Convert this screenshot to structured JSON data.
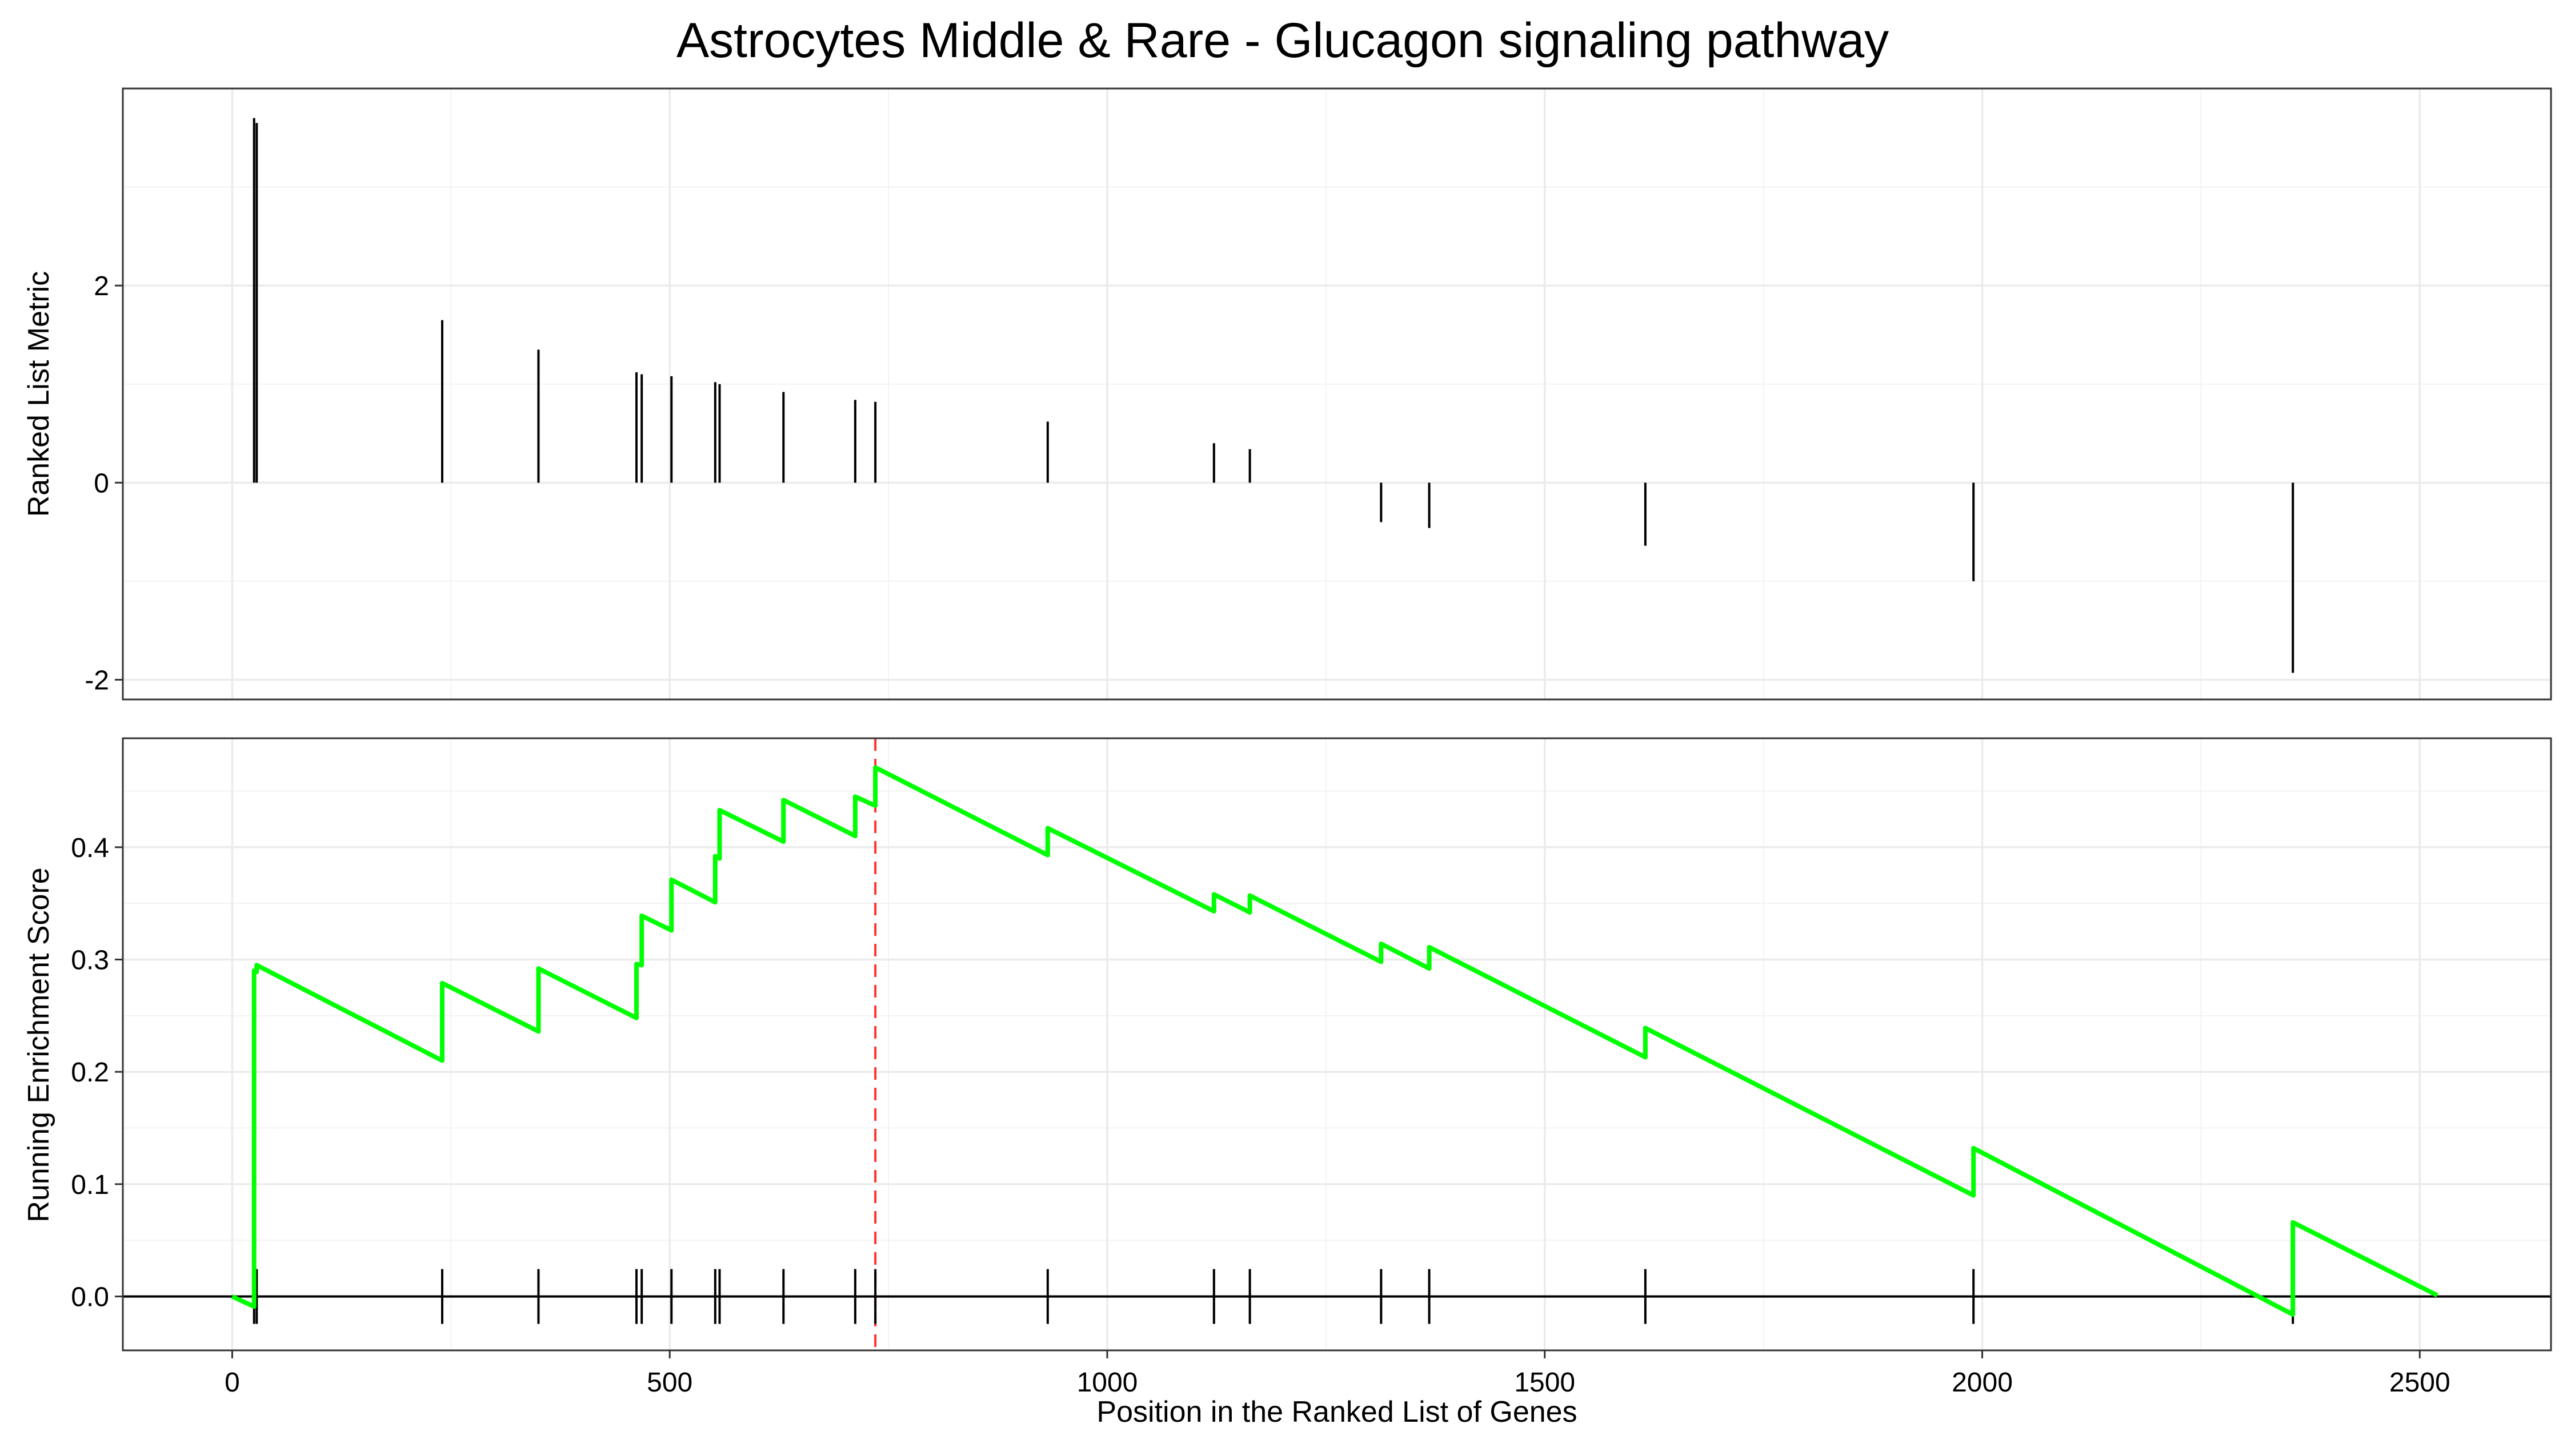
{
  "chart_data": {
    "type": "line",
    "title": "Astrocytes Middle & Rare - Glucagon signaling pathway",
    "xlabel": "Position in the Ranked List of Genes",
    "xlim": [
      -125,
      2650
    ],
    "x_ticks": [
      0,
      500,
      1000,
      1500,
      2000,
      2500
    ],
    "x_tick_labels": [
      "0",
      "500",
      "1000",
      "1500",
      "2000",
      "2500"
    ],
    "grid": true,
    "peak_position": 735,
    "colors": {
      "running_es": "#00ff00",
      "peak_line": "#ff3333",
      "bars": "#000000",
      "hits": "#000000",
      "zero_line": "#000000"
    },
    "top_panel": {
      "ylabel": "Ranked List Metric",
      "ylim": [
        -2.2,
        4.0
      ],
      "y_ticks": [
        -2,
        0,
        2
      ],
      "y_tick_labels": [
        "-2",
        "0",
        "2"
      ],
      "bars": [
        {
          "x": 25,
          "y": 3.7
        },
        {
          "x": 28,
          "y": 3.65
        },
        {
          "x": 240,
          "y": 1.65
        },
        {
          "x": 350,
          "y": 1.35
        },
        {
          "x": 462,
          "y": 1.12
        },
        {
          "x": 468,
          "y": 1.1
        },
        {
          "x": 502,
          "y": 1.08
        },
        {
          "x": 552,
          "y": 1.02
        },
        {
          "x": 557,
          "y": 1.0
        },
        {
          "x": 630,
          "y": 0.92
        },
        {
          "x": 712,
          "y": 0.84
        },
        {
          "x": 735,
          "y": 0.82
        },
        {
          "x": 932,
          "y": 0.62
        },
        {
          "x": 1122,
          "y": 0.4
        },
        {
          "x": 1163,
          "y": 0.34
        },
        {
          "x": 1313,
          "y": -0.4
        },
        {
          "x": 1368,
          "y": -0.46
        },
        {
          "x": 1615,
          "y": -0.64
        },
        {
          "x": 1990,
          "y": -1.0
        },
        {
          "x": 2355,
          "y": -1.93
        }
      ]
    },
    "bottom_panel": {
      "ylabel": "Running Enrichment Score",
      "ylim": [
        -0.048,
        0.497
      ],
      "y_ticks": [
        0.0,
        0.1,
        0.2,
        0.3,
        0.4
      ],
      "y_tick_labels": [
        "0.0",
        "0.1",
        "0.2",
        "0.3",
        "0.4"
      ],
      "series": [
        {
          "x": [
            0,
            25,
            25,
            28,
            28,
            240,
            240,
            350,
            350,
            462,
            462,
            468,
            468,
            502,
            502,
            552,
            552,
            557,
            557,
            630,
            630,
            712,
            712,
            735,
            735,
            932,
            932,
            1122,
            1122,
            1163,
            1163,
            1313,
            1313,
            1368,
            1368,
            1615,
            1615,
            1990,
            1990,
            2355,
            2355,
            2520
          ],
          "y": [
            0.0,
            -0.009,
            0.29,
            0.289,
            0.295,
            0.21,
            0.279,
            0.236,
            0.292,
            0.248,
            0.296,
            0.295,
            0.339,
            0.326,
            0.371,
            0.351,
            0.392,
            0.39,
            0.433,
            0.405,
            0.442,
            0.41,
            0.445,
            0.437,
            0.471,
            0.393,
            0.417,
            0.343,
            0.358,
            0.342,
            0.357,
            0.298,
            0.314,
            0.292,
            0.311,
            0.213,
            0.239,
            0.09,
            0.132,
            -0.016,
            0.066,
            0.001
          ]
        }
      ],
      "hits": [
        25,
        28,
        240,
        350,
        462,
        468,
        502,
        552,
        557,
        630,
        712,
        735,
        932,
        1122,
        1163,
        1313,
        1368,
        1615,
        1990,
        2355
      ]
    }
  }
}
